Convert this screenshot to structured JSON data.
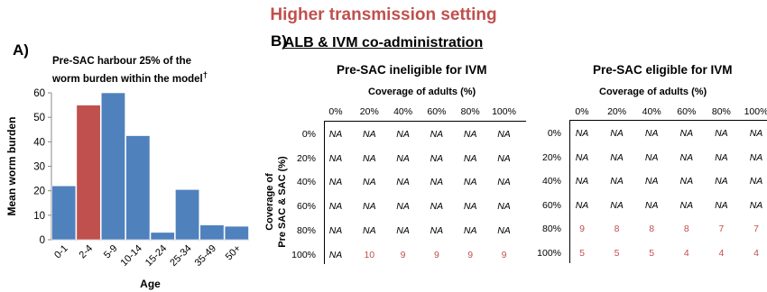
{
  "header": {
    "title": "Higher transmission setting",
    "subtitle": "ALB & IVM co-administration"
  },
  "panels": {
    "a_label": "A)",
    "b_label": "B)"
  },
  "chart_data": {
    "type": "bar",
    "title_line1": "Pre-SAC harbour 25% of the",
    "title_line2": "worm burden within the model",
    "title_dagger": "†",
    "xlabel": "Age",
    "ylabel": "Mean worm burden",
    "ylim": [
      0,
      60
    ],
    "yticks": [
      "0",
      "10",
      "20",
      "30",
      "40",
      "50",
      "60"
    ],
    "categories": [
      "0-1",
      "2-4",
      "5-9",
      "10-14",
      "15-24",
      "25-34",
      "35-49",
      "50+"
    ],
    "values": [
      22,
      55,
      60,
      42.5,
      3,
      20.5,
      6,
      5.5
    ],
    "colors": [
      "#4f81bd",
      "#c0504d",
      "#4f81bd",
      "#4f81bd",
      "#4f81bd",
      "#4f81bd",
      "#4f81bd",
      "#4f81bd"
    ],
    "grid": false
  },
  "tables": {
    "row_axis_line1": "Coverage of",
    "row_axis_line2": "Pre SAC & SAC  (%)",
    "col_axis": "Coverage of adults (%)",
    "columns": [
      "0%",
      "20%",
      "40%",
      "60%",
      "80%",
      "100%"
    ],
    "rows": [
      "0%",
      "20%",
      "40%",
      "60%",
      "80%",
      "100%"
    ],
    "left": {
      "title": "Pre-SAC ineligible for IVM",
      "cells": [
        [
          "NA",
          "NA",
          "NA",
          "NA",
          "NA",
          "NA"
        ],
        [
          "NA",
          "NA",
          "NA",
          "NA",
          "NA",
          "NA"
        ],
        [
          "NA",
          "NA",
          "NA",
          "NA",
          "NA",
          "NA"
        ],
        [
          "NA",
          "NA",
          "NA",
          "NA",
          "NA",
          "NA"
        ],
        [
          "NA",
          "NA",
          "NA",
          "NA",
          "NA",
          "NA"
        ],
        [
          "NA",
          "10",
          "9",
          "9",
          "9",
          "9"
        ]
      ]
    },
    "right": {
      "title": "Pre-SAC eligible for IVM",
      "cells": [
        [
          "NA",
          "NA",
          "NA",
          "NA",
          "NA",
          "NA"
        ],
        [
          "NA",
          "NA",
          "NA",
          "NA",
          "NA",
          "NA"
        ],
        [
          "NA",
          "NA",
          "NA",
          "NA",
          "NA",
          "NA"
        ],
        [
          "NA",
          "NA",
          "NA",
          "NA",
          "NA",
          "NA"
        ],
        [
          "9",
          "8",
          "8",
          "8",
          "7",
          "7"
        ],
        [
          "5",
          "5",
          "5",
          "4",
          "4",
          "4"
        ]
      ]
    }
  }
}
